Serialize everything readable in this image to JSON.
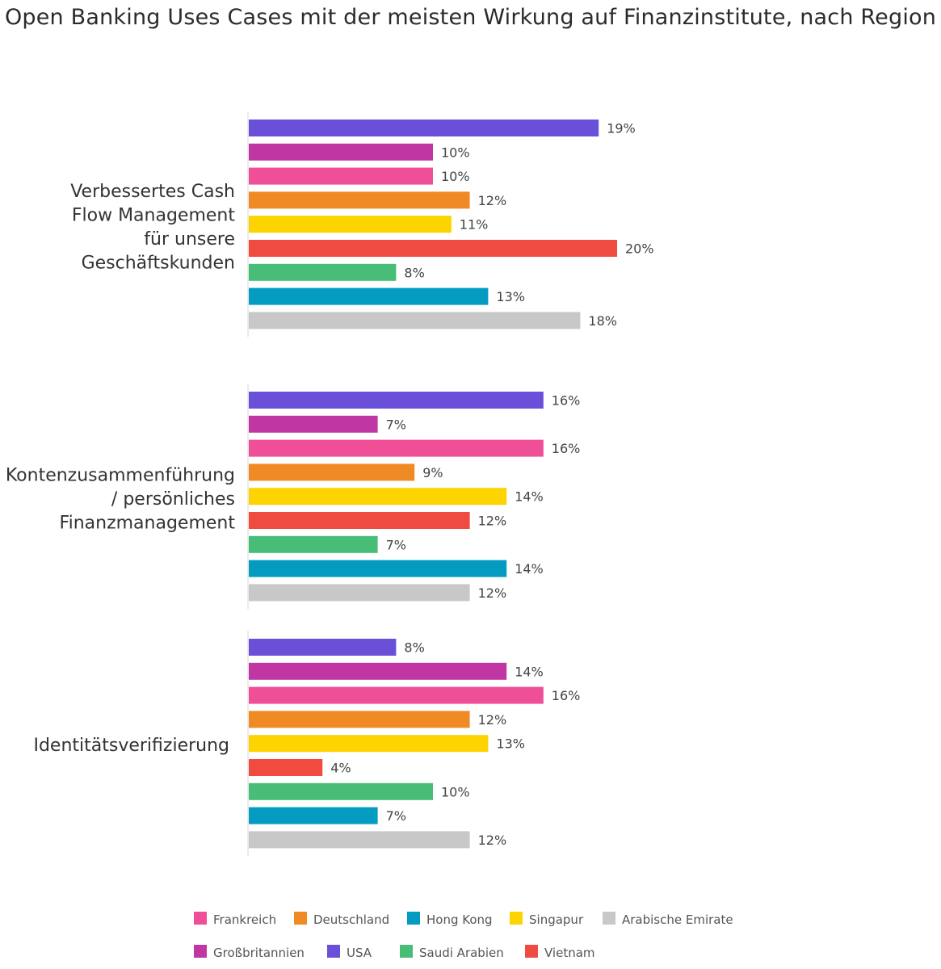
{
  "title": "Open Banking Uses Cases mit der meisten Wirkung auf Finanzinstitute, nach Region",
  "chart_data": {
    "type": "bar",
    "orientation": "horizontal",
    "title": "Open Banking Uses Cases mit der meisten Wirkung auf Finanzinstitute, nach Region",
    "value_suffix": "%",
    "xlim": [
      0,
      20
    ],
    "grid": false,
    "legend_position": "bottom",
    "groups": [
      {
        "label_lines": [
          "Verbessertes Cash",
          "Flow Management",
          "für unsere",
          "Geschäftskunden"
        ],
        "values": [
          {
            "region": "USA",
            "value": 19
          },
          {
            "region": "Großbritannien",
            "value": 10
          },
          {
            "region": "Frankreich",
            "value": 10
          },
          {
            "region": "Deutschland",
            "value": 12
          },
          {
            "region": "Singapur",
            "value": 11
          },
          {
            "region": "Vietnam",
            "value": 20
          },
          {
            "region": "Saudi Arabien",
            "value": 8
          },
          {
            "region": "Hong Kong",
            "value": 13
          },
          {
            "region": "Arabische Emirate",
            "value": 18
          }
        ]
      },
      {
        "label_lines": [
          "Kontenzusammenführung",
          "/ persönliches",
          "Finanzmanagement"
        ],
        "values": [
          {
            "region": "USA",
            "value": 16
          },
          {
            "region": "Großbritannien",
            "value": 7
          },
          {
            "region": "Frankreich",
            "value": 16
          },
          {
            "region": "Deutschland",
            "value": 9
          },
          {
            "region": "Singapur",
            "value": 14
          },
          {
            "region": "Vietnam",
            "value": 12
          },
          {
            "region": "Saudi Arabien",
            "value": 7
          },
          {
            "region": "Hong Kong",
            "value": 14
          },
          {
            "region": "Arabische Emirate",
            "value": 12
          }
        ]
      },
      {
        "label_lines": [
          "Identitätsverifizierung"
        ],
        "values": [
          {
            "region": "USA",
            "value": 8
          },
          {
            "region": "Großbritannien",
            "value": 14
          },
          {
            "region": "Frankreich",
            "value": 16
          },
          {
            "region": "Deutschland",
            "value": 12
          },
          {
            "region": "Singapur",
            "value": 13
          },
          {
            "region": "Vietnam",
            "value": 4
          },
          {
            "region": "Saudi Arabien",
            "value": 10
          },
          {
            "region": "Hong Kong",
            "value": 7
          },
          {
            "region": "Arabische Emirate",
            "value": 12
          }
        ]
      }
    ],
    "legend": [
      [
        {
          "name": "Frankreich",
          "color": "#ef4f97"
        },
        {
          "name": "Deutschland",
          "color": "#f08a24"
        },
        {
          "name": "Hong Kong",
          "color": "#039cc0"
        },
        {
          "name": "Singapur",
          "color": "#fdd300"
        },
        {
          "name": "Arabische Emirate",
          "color": "#c8c8c8"
        }
      ],
      [
        {
          "name": "Großbritannien",
          "color": "#c037a3"
        },
        {
          "name": "USA",
          "color": "#6a4fd9"
        },
        {
          "name": "Saudi Arabien",
          "color": "#47bd78"
        },
        {
          "name": "Vietnam",
          "color": "#ef4b40"
        }
      ]
    ]
  }
}
